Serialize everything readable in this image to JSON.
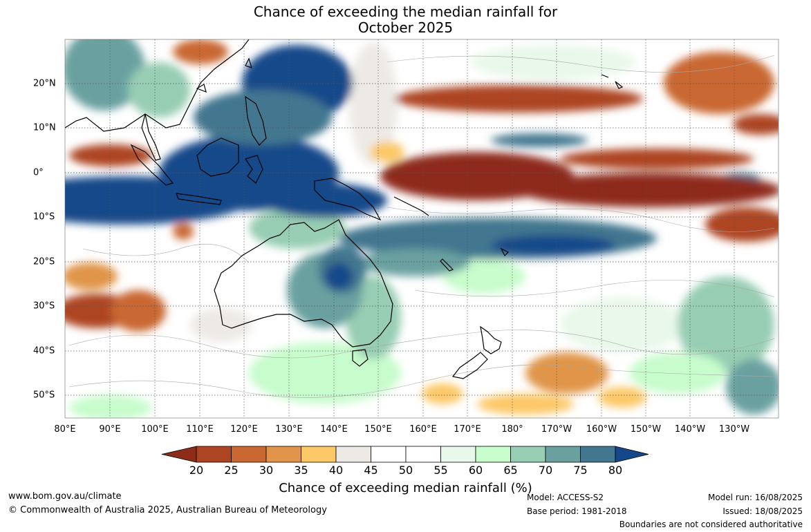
{
  "title": {
    "line1": "Chance of exceeding the median rainfall for",
    "line2": "October 2025"
  },
  "map": {
    "lon_labels": [
      "80°E",
      "90°E",
      "100°E",
      "110°E",
      "120°E",
      "130°E",
      "140°E",
      "150°E",
      "160°E",
      "170°E",
      "180°",
      "170°W",
      "160°W",
      "150°W",
      "140°W",
      "130°W"
    ],
    "lat_labels": [
      "20°N",
      "10°N",
      "0°",
      "10°S",
      "20°S",
      "30°S",
      "40°S",
      "50°S"
    ]
  },
  "colorbar": {
    "ticks": [
      "20",
      "25",
      "30",
      "35",
      "40",
      "45",
      "50",
      "55",
      "60",
      "65",
      "70",
      "75",
      "80"
    ],
    "colors": [
      "#8e2c1a",
      "#ad4522",
      "#c96832",
      "#e0954a",
      "#fcc868",
      "#edeae6",
      "#ffffff",
      "#ffffff",
      "#e9f8ea",
      "#c7fccc",
      "#97cdb3",
      "#6aa1a0",
      "#42778f",
      "#14488a"
    ],
    "label": "Chance of exceeding median rainfall (%)"
  },
  "footer": {
    "website": "www.bom.gov.au/climate",
    "copyright": "© Commonwealth of Australia 2025, Australian Bureau of Meteorology",
    "model": "Model: ACCESS-S2",
    "base_period": "Base period: 1981-2018",
    "model_run": "Model run: 16/08/2025",
    "issued": "Issued: 18/08/2025",
    "disclaimer": "Boundaries are not considered authoritative"
  }
}
